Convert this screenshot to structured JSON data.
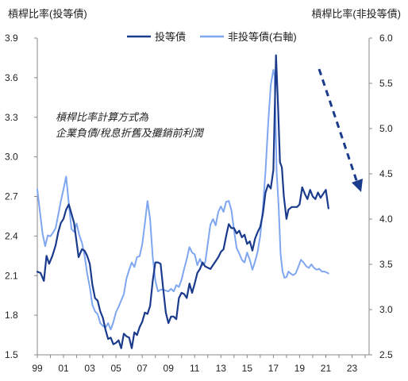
{
  "chart_data": {
    "type": "line",
    "left_axis_title": "槓桿比率(投等債)",
    "right_axis_title": "槓桿比率(非投等債)",
    "left_ylim": [
      1.5,
      3.9
    ],
    "left_ticks": [
      "1.5",
      "1.8",
      "2.1",
      "2.4",
      "2.7",
      "3.0",
      "3.3",
      "3.6",
      "3.9"
    ],
    "right_ylim": [
      2.5,
      6.0
    ],
    "right_ticks": [
      "2.5",
      "3.0",
      "3.5",
      "4.0",
      "4.5",
      "5.0",
      "5.5",
      "6.0"
    ],
    "x_ticks": [
      "99",
      "01",
      "03",
      "05",
      "07",
      "09",
      "11",
      "13",
      "15",
      "17",
      "19",
      "21",
      "23"
    ],
    "x_tick_years": [
      1999,
      2001,
      2003,
      2005,
      2007,
      2009,
      2011,
      2013,
      2015,
      2017,
      2019,
      2021,
      2023
    ],
    "xlim": [
      1999,
      2024.3
    ],
    "annotation_lines": [
      "槓桿比率計算方式為",
      "企業負債/稅息折舊及攤銷前利潤"
    ],
    "grid": false,
    "legend_position": "top-center",
    "series": [
      {
        "name": "投等債",
        "axis": "left",
        "color": "#1a3a8c",
        "points": [
          [
            1999.0,
            2.13
          ],
          [
            1999.25,
            2.12
          ],
          [
            1999.5,
            2.06
          ],
          [
            1999.7,
            2.25
          ],
          [
            1999.9,
            2.19
          ],
          [
            2000.15,
            2.25
          ],
          [
            2000.4,
            2.33
          ],
          [
            2000.6,
            2.43
          ],
          [
            2000.8,
            2.5
          ],
          [
            2001.0,
            2.53
          ],
          [
            2001.2,
            2.6
          ],
          [
            2001.4,
            2.64
          ],
          [
            2001.6,
            2.57
          ],
          [
            2001.8,
            2.5
          ],
          [
            2002.0,
            2.35
          ],
          [
            2002.15,
            2.24
          ],
          [
            2002.4,
            2.3
          ],
          [
            2002.6,
            2.29
          ],
          [
            2002.8,
            2.25
          ],
          [
            2003.0,
            2.19
          ],
          [
            2003.2,
            2.03
          ],
          [
            2003.4,
            1.93
          ],
          [
            2003.6,
            1.91
          ],
          [
            2003.8,
            1.83
          ],
          [
            2004.0,
            1.78
          ],
          [
            2004.2,
            1.69
          ],
          [
            2004.4,
            1.62
          ],
          [
            2004.6,
            1.63
          ],
          [
            2004.8,
            1.58
          ],
          [
            2005.0,
            1.59
          ],
          [
            2005.2,
            1.61
          ],
          [
            2005.4,
            1.55
          ],
          [
            2005.6,
            1.66
          ],
          [
            2005.8,
            1.64
          ],
          [
            2006.0,
            1.63
          ],
          [
            2006.2,
            1.55
          ],
          [
            2006.4,
            1.67
          ],
          [
            2006.6,
            1.65
          ],
          [
            2006.8,
            1.71
          ],
          [
            2007.0,
            1.75
          ],
          [
            2007.2,
            1.82
          ],
          [
            2007.4,
            1.81
          ],
          [
            2007.6,
            1.87
          ],
          [
            2007.8,
            2.06
          ],
          [
            2008.0,
            2.2
          ],
          [
            2008.2,
            2.2
          ],
          [
            2008.4,
            2.19
          ],
          [
            2008.6,
            2.0
          ],
          [
            2008.8,
            1.82
          ],
          [
            2009.0,
            1.74
          ],
          [
            2009.2,
            1.79
          ],
          [
            2009.4,
            1.79
          ],
          [
            2009.6,
            1.77
          ],
          [
            2009.8,
            1.93
          ],
          [
            2010.0,
            1.97
          ],
          [
            2010.2,
            1.96
          ],
          [
            2010.4,
            1.93
          ],
          [
            2010.6,
            2.04
          ],
          [
            2010.8,
            1.97
          ],
          [
            2011.0,
            2.04
          ],
          [
            2011.2,
            2.12
          ],
          [
            2011.4,
            2.15
          ],
          [
            2011.6,
            2.2
          ],
          [
            2011.8,
            2.17
          ],
          [
            2012.0,
            2.16
          ],
          [
            2012.2,
            2.15
          ],
          [
            2012.4,
            2.18
          ],
          [
            2012.6,
            2.21
          ],
          [
            2012.8,
            2.24
          ],
          [
            2013.0,
            2.28
          ],
          [
            2013.2,
            2.3
          ],
          [
            2013.4,
            2.4
          ],
          [
            2013.6,
            2.49
          ],
          [
            2013.8,
            2.46
          ],
          [
            2014.0,
            2.46
          ],
          [
            2014.2,
            2.42
          ],
          [
            2014.4,
            2.44
          ],
          [
            2014.6,
            2.39
          ],
          [
            2014.8,
            2.41
          ],
          [
            2015.0,
            2.34
          ],
          [
            2015.2,
            2.36
          ],
          [
            2015.4,
            2.29
          ],
          [
            2015.6,
            2.38
          ],
          [
            2015.8,
            2.43
          ],
          [
            2016.0,
            2.47
          ],
          [
            2016.2,
            2.57
          ],
          [
            2016.4,
            2.73
          ],
          [
            2016.6,
            2.79
          ],
          [
            2016.8,
            2.76
          ],
          [
            2017.0,
            2.9
          ],
          [
            2017.2,
            3.77
          ],
          [
            2017.35,
            3.4
          ],
          [
            2017.5,
            2.96
          ],
          [
            2017.65,
            2.92
          ],
          [
            2017.8,
            2.7
          ],
          [
            2018.0,
            2.53
          ],
          [
            2018.15,
            2.6
          ],
          [
            2018.4,
            2.62
          ],
          [
            2018.6,
            2.62
          ],
          [
            2018.8,
            2.62
          ],
          [
            2019.0,
            2.64
          ],
          [
            2019.2,
            2.77
          ],
          [
            2019.4,
            2.72
          ],
          [
            2019.6,
            2.68
          ],
          [
            2019.8,
            2.75
          ],
          [
            2020.0,
            2.7
          ],
          [
            2020.2,
            2.68
          ],
          [
            2020.4,
            2.73
          ],
          [
            2020.6,
            2.69
          ],
          [
            2020.8,
            2.72
          ],
          [
            2021.0,
            2.75
          ],
          [
            2021.2,
            2.61
          ]
        ]
      },
      {
        "name": "非投等債(右軸)",
        "axis": "right",
        "color": "#7fa6f0",
        "points": [
          [
            1999.0,
            4.33
          ],
          [
            1999.2,
            4.08
          ],
          [
            1999.4,
            3.84
          ],
          [
            1999.6,
            3.7
          ],
          [
            1999.8,
            3.82
          ],
          [
            2000.0,
            3.81
          ],
          [
            2000.2,
            3.85
          ],
          [
            2000.4,
            3.9
          ],
          [
            2000.6,
            4.05
          ],
          [
            2000.8,
            4.2
          ],
          [
            2001.0,
            4.33
          ],
          [
            2001.2,
            4.47
          ],
          [
            2001.4,
            4.17
          ],
          [
            2001.6,
            3.89
          ],
          [
            2001.8,
            3.86
          ],
          [
            2002.0,
            3.95
          ],
          [
            2002.2,
            3.82
          ],
          [
            2002.4,
            3.74
          ],
          [
            2002.6,
            3.6
          ],
          [
            2002.8,
            3.4
          ],
          [
            2003.0,
            3.25
          ],
          [
            2003.2,
            3.05
          ],
          [
            2003.4,
            2.98
          ],
          [
            2003.6,
            2.95
          ],
          [
            2003.8,
            2.85
          ],
          [
            2004.0,
            2.82
          ],
          [
            2004.2,
            2.8
          ],
          [
            2004.4,
            2.85
          ],
          [
            2004.6,
            2.78
          ],
          [
            2004.8,
            2.86
          ],
          [
            2005.0,
            2.97
          ],
          [
            2005.2,
            3.03
          ],
          [
            2005.4,
            3.1
          ],
          [
            2005.6,
            3.17
          ],
          [
            2005.8,
            3.34
          ],
          [
            2006.0,
            3.44
          ],
          [
            2006.2,
            3.52
          ],
          [
            2006.4,
            3.47
          ],
          [
            2006.6,
            3.58
          ],
          [
            2006.8,
            3.59
          ],
          [
            2007.0,
            3.72
          ],
          [
            2007.2,
            3.95
          ],
          [
            2007.4,
            4.2
          ],
          [
            2007.6,
            4.0
          ],
          [
            2007.8,
            3.58
          ],
          [
            2008.0,
            3.32
          ],
          [
            2008.2,
            3.2
          ],
          [
            2008.4,
            3.22
          ],
          [
            2008.6,
            3.22
          ],
          [
            2008.8,
            3.21
          ],
          [
            2009.0,
            3.2
          ],
          [
            2009.2,
            3.23
          ],
          [
            2009.4,
            3.2
          ],
          [
            2009.6,
            3.27
          ],
          [
            2009.8,
            3.25
          ],
          [
            2010.0,
            3.33
          ],
          [
            2010.2,
            3.45
          ],
          [
            2010.4,
            3.56
          ],
          [
            2010.6,
            3.69
          ],
          [
            2010.8,
            3.63
          ],
          [
            2011.0,
            3.61
          ],
          [
            2011.2,
            3.49
          ],
          [
            2011.4,
            3.56
          ],
          [
            2011.6,
            3.49
          ],
          [
            2011.8,
            3.52
          ],
          [
            2012.0,
            3.73
          ],
          [
            2012.2,
            3.94
          ],
          [
            2012.4,
            4.0
          ],
          [
            2012.6,
            3.93
          ],
          [
            2012.8,
            4.08
          ],
          [
            2013.0,
            4.14
          ],
          [
            2013.2,
            4.08
          ],
          [
            2013.4,
            4.19
          ],
          [
            2013.6,
            4.2
          ],
          [
            2013.8,
            4.1
          ],
          [
            2014.0,
            3.88
          ],
          [
            2014.2,
            3.68
          ],
          [
            2014.4,
            3.62
          ],
          [
            2014.6,
            3.55
          ],
          [
            2014.8,
            3.52
          ],
          [
            2015.0,
            3.63
          ],
          [
            2015.2,
            3.55
          ],
          [
            2015.4,
            3.44
          ],
          [
            2015.6,
            3.53
          ],
          [
            2015.8,
            3.64
          ],
          [
            2016.0,
            3.82
          ],
          [
            2016.2,
            4.12
          ],
          [
            2016.4,
            4.53
          ],
          [
            2016.6,
            5.05
          ],
          [
            2016.8,
            5.48
          ],
          [
            2017.0,
            5.65
          ],
          [
            2017.1,
            5.58
          ],
          [
            2017.25,
            4.52
          ],
          [
            2017.4,
            4.15
          ],
          [
            2017.55,
            3.61
          ],
          [
            2017.7,
            3.42
          ],
          [
            2017.85,
            3.35
          ],
          [
            2018.0,
            3.36
          ],
          [
            2018.15,
            3.42
          ],
          [
            2018.3,
            3.4
          ],
          [
            2018.5,
            3.38
          ],
          [
            2018.7,
            3.4
          ],
          [
            2018.9,
            3.47
          ],
          [
            2019.1,
            3.55
          ],
          [
            2019.3,
            3.52
          ],
          [
            2019.5,
            3.48
          ],
          [
            2019.7,
            3.46
          ],
          [
            2019.9,
            3.5
          ],
          [
            2020.1,
            3.46
          ],
          [
            2020.3,
            3.44
          ],
          [
            2020.5,
            3.45
          ],
          [
            2020.7,
            3.42
          ],
          [
            2020.9,
            3.42
          ],
          [
            2021.2,
            3.4
          ]
        ]
      }
    ]
  }
}
